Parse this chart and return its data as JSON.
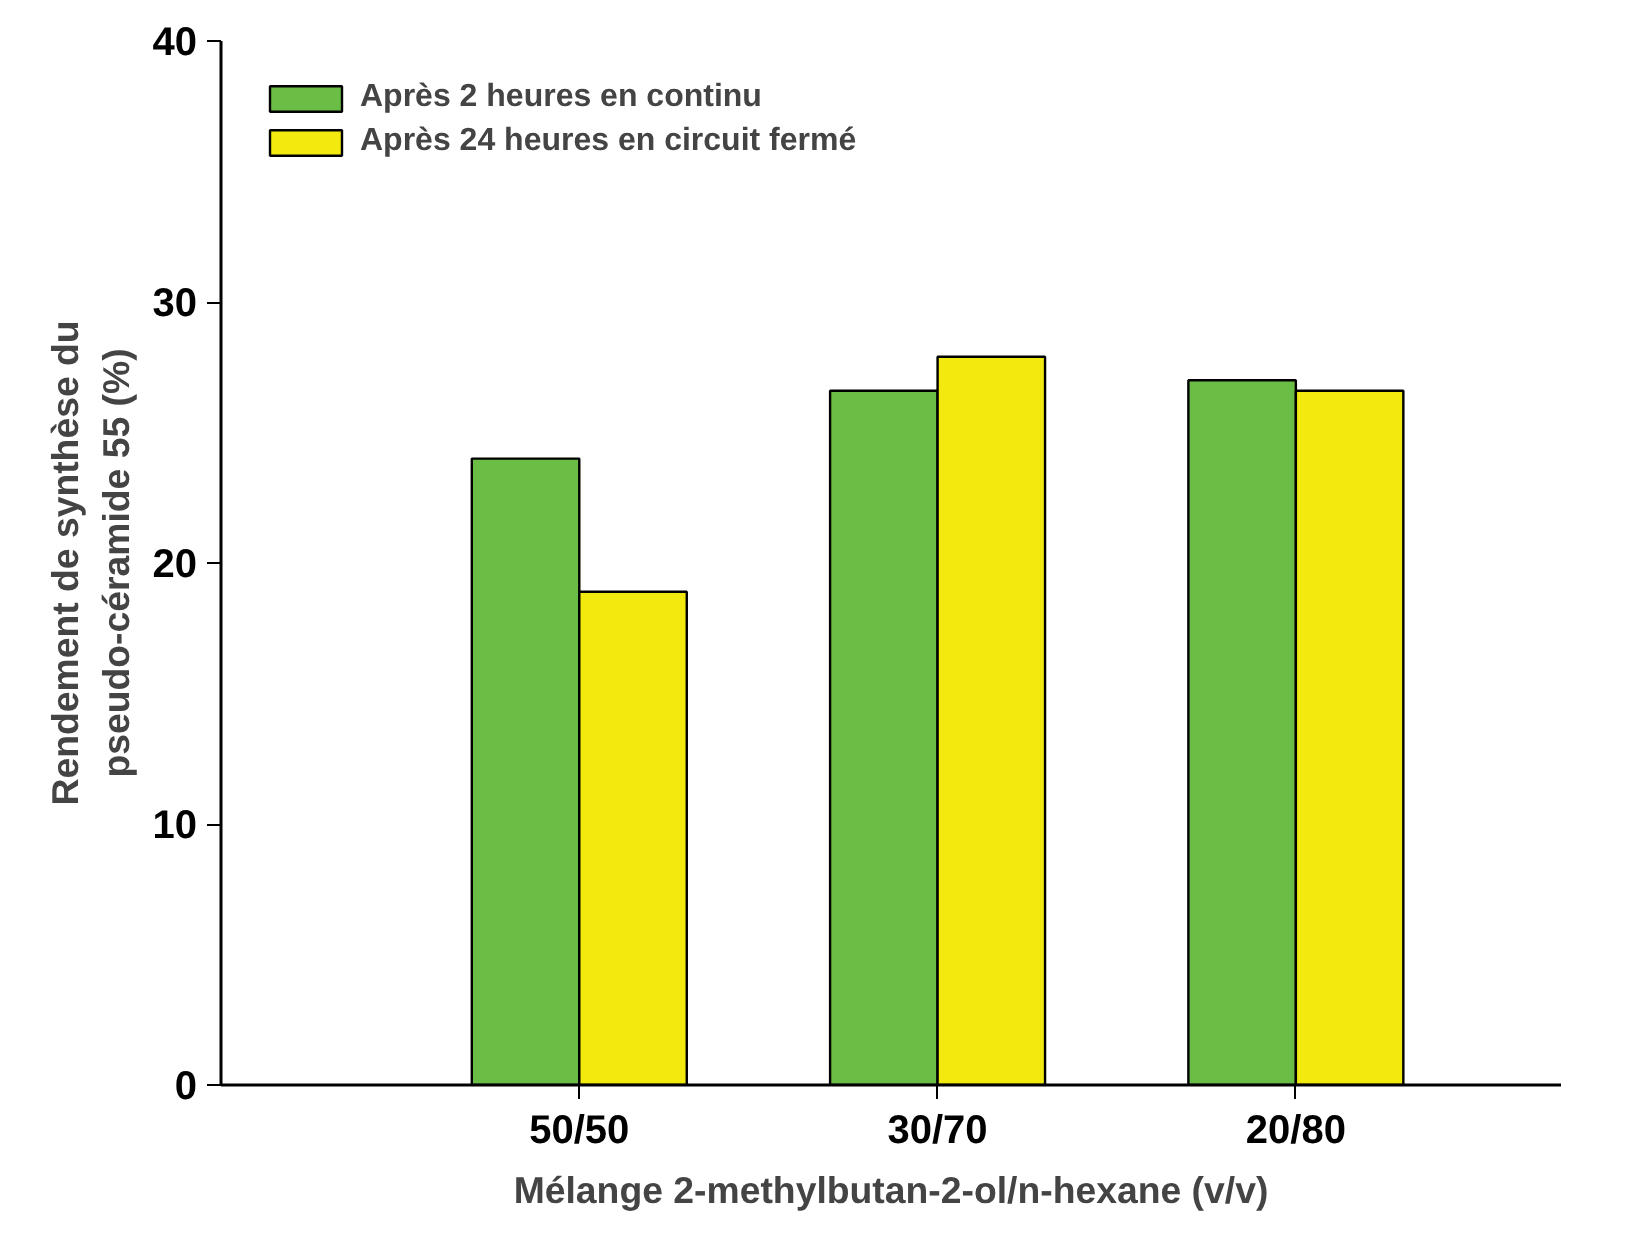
{
  "chart_data": {
    "type": "bar",
    "xlabel": "Mélange 2-methylbutan-2-ol/n-hexane (v/v)",
    "ylabel": "Rendement de synthèse du\npseudo-céramide 55 (%)",
    "categories": [
      "50/50",
      "30/70",
      "20/80"
    ],
    "series": [
      {
        "name": "Après 2 heures en continu",
        "color": "#6abd45",
        "values": [
          24.0,
          26.6,
          27.0
        ]
      },
      {
        "name": "Après 24 heures en circuit fermé",
        "color": "#f2e90f",
        "values": [
          18.9,
          27.9,
          26.6
        ]
      }
    ],
    "ylim": [
      0,
      40
    ],
    "yticks": [
      0,
      10,
      20,
      30,
      40
    ],
    "legend": "top left"
  }
}
